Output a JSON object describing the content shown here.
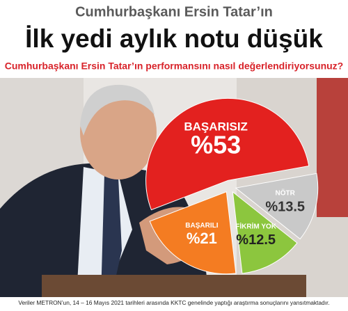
{
  "kicker": "Cumhurbaşkanı Ersin Tatar’ın",
  "chart_data": {
    "type": "pie",
    "title": "İlk yedi aylık notu düşük",
    "subtitle": "Cumhurbaşkanı Ersin Tatar’ın performansını  nasıl değerlendiriyorsunuz?",
    "categories": [
      "BAŞARISIZ",
      "NÖTR",
      "FİKRİM YOK",
      "BAŞARILI"
    ],
    "values": [
      53,
      13.5,
      12.5,
      21
    ],
    "value_labels": [
      "%53",
      "%13.5",
      "%12.5",
      "%21"
    ],
    "colors": [
      "#e3211f",
      "#c9c9c9",
      "#8cc63e",
      "#f47c22"
    ]
  },
  "footer": "Veriler METRON’un, 14 – 16 Mayıs 2021 tarihleri arasında KKTC genelinde yaptığı araştırma sonuçlarını yansıtmaktadır."
}
